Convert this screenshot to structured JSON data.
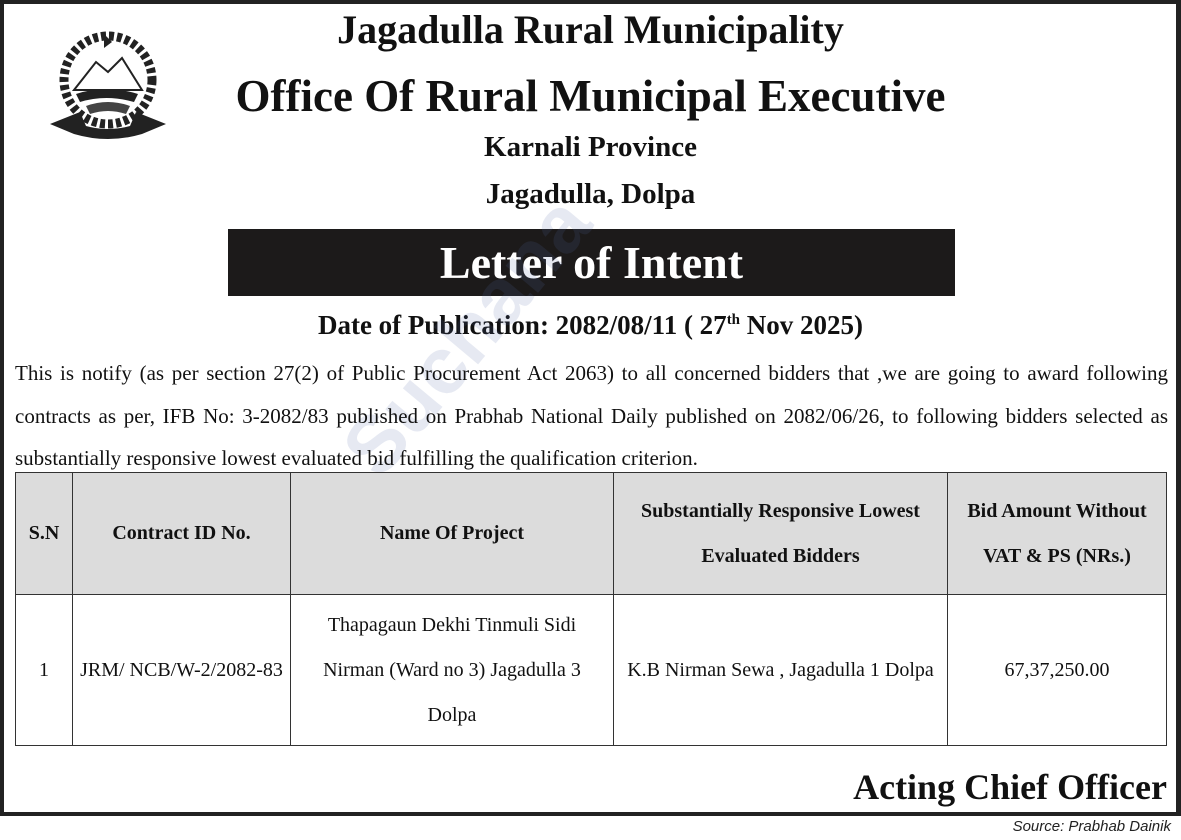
{
  "header": {
    "line1": "Jagadulla Rural Municipality",
    "line2": "Office Of Rural Municipal Executive",
    "line3": "Karnali Province",
    "line4": "Jagadulla, Dolpa",
    "logo": "nepal-emblem"
  },
  "banner": "Letter of Intent",
  "date": {
    "prefix": "Date of Publication: 2082/08/11 ( 27",
    "sup": "th",
    "suffix": " Nov 2025)"
  },
  "body": "This is notify (as per section 27(2) of Public Procurement Act 2063) to all concerned bidders that ,we are going to award following contracts as per, IFB No: 3-2082/83  published on  Prabhab National Daily published on 2082/06/26, to following bidders selected as substantially responsive lowest evaluated bid fulfilling the qualification criterion.",
  "table": {
    "headers": [
      "S.N",
      "Contract ID No.",
      "Name Of Project",
      "Substantially Responsive Lowest Evaluated Bidders",
      "Bid Amount Without VAT & PS (NRs.)"
    ],
    "rows": [
      [
        "1",
        "JRM/ NCB/W-2/2082-83",
        "Thapagaun Dekhi Tinmuli Sidi Nirman (Ward no 3) Jagadulla 3 Dolpa",
        "K.B Nirman Sewa , Jagadulla 1 Dolpa",
        "67,37,250.00"
      ]
    ]
  },
  "signature": "Acting Chief Officer",
  "source": "Source: Prabhab Dainik",
  "watermark": "Suchana"
}
